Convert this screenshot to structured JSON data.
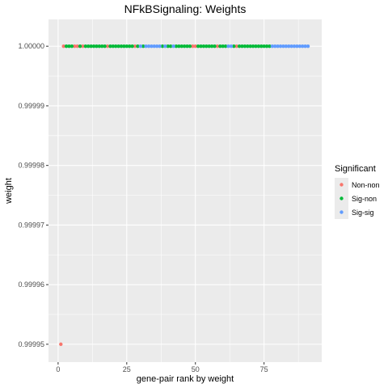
{
  "chart_data": {
    "type": "scatter",
    "title": "NFkBSignaling: Weights",
    "xlabel": "gene-pair rank by weight",
    "ylabel": "weight",
    "xlim": [
      -3.5,
      96
    ],
    "ylim": [
      0.999947,
      1.0000045
    ],
    "x_ticks": [
      0,
      25,
      50,
      75
    ],
    "x_tick_labels": [
      "0",
      "25",
      "50",
      "75"
    ],
    "y_ticks": [
      0.99995,
      0.99996,
      0.99997,
      0.99998,
      0.99999,
      1.0
    ],
    "y_tick_labels": [
      "0.99995",
      "0.99996",
      "0.99997",
      "0.99998",
      "0.99999",
      "1.00000"
    ],
    "grid": true,
    "legend": {
      "title": "Significant",
      "placement": "right"
    },
    "colors": {
      "Non-non": "#F8766D",
      "Sig-non": "#00BA38",
      "Sig-sig": "#619CFF",
      "panel": "#EBEBEB",
      "grid": "#FFFFFF"
    },
    "series": [
      {
        "name": "Non-non",
        "x": [
          1,
          2,
          6,
          7,
          9,
          18,
          28,
          49,
          50,
          58,
          65
        ],
        "y": [
          0.99995,
          1.0,
          1.0,
          1.0,
          1.0,
          1.0,
          1.0,
          1.0,
          1.0,
          1.0,
          1.0
        ]
      },
      {
        "name": "Sig-non",
        "x": [
          3,
          4,
          5,
          8,
          10,
          11,
          12,
          13,
          14,
          15,
          16,
          17,
          19,
          20,
          21,
          22,
          23,
          24,
          25,
          26,
          27,
          29,
          31,
          38,
          40,
          41,
          43,
          44,
          45,
          46,
          47,
          48,
          51,
          52,
          53,
          54,
          55,
          56,
          57,
          59,
          60,
          61,
          64,
          66,
          67,
          68,
          69,
          70,
          71,
          72,
          73,
          74,
          75,
          76,
          77
        ],
        "y": [
          1.0,
          1.0,
          1.0,
          1.0,
          1.0,
          1.0,
          1.0,
          1.0,
          1.0,
          1.0,
          1.0,
          1.0,
          1.0,
          1.0,
          1.0,
          1.0,
          1.0,
          1.0,
          1.0,
          1.0,
          1.0,
          1.0,
          1.0,
          1.0,
          1.0,
          1.0,
          1.0,
          1.0,
          1.0,
          1.0,
          1.0,
          1.0,
          1.0,
          1.0,
          1.0,
          1.0,
          1.0,
          1.0,
          1.0,
          1.0,
          1.0,
          1.0,
          1.0,
          1.0,
          1.0,
          1.0,
          1.0,
          1.0,
          1.0,
          1.0,
          1.0,
          1.0,
          1.0,
          1.0,
          1.0
        ]
      },
      {
        "name": "Sig-sig",
        "x": [
          30,
          32,
          33,
          34,
          35,
          36,
          37,
          39,
          42,
          62,
          63,
          78,
          79,
          80,
          81,
          82,
          83,
          84,
          85,
          86,
          87,
          88,
          89,
          90,
          91
        ],
        "y": [
          1.0,
          1.0,
          1.0,
          1.0,
          1.0,
          1.0,
          1.0,
          1.0,
          1.0,
          1.0,
          1.0,
          1.0,
          1.0,
          1.0,
          1.0,
          1.0,
          1.0,
          1.0,
          1.0,
          1.0,
          1.0,
          1.0,
          1.0,
          1.0,
          1.0
        ]
      }
    ]
  }
}
